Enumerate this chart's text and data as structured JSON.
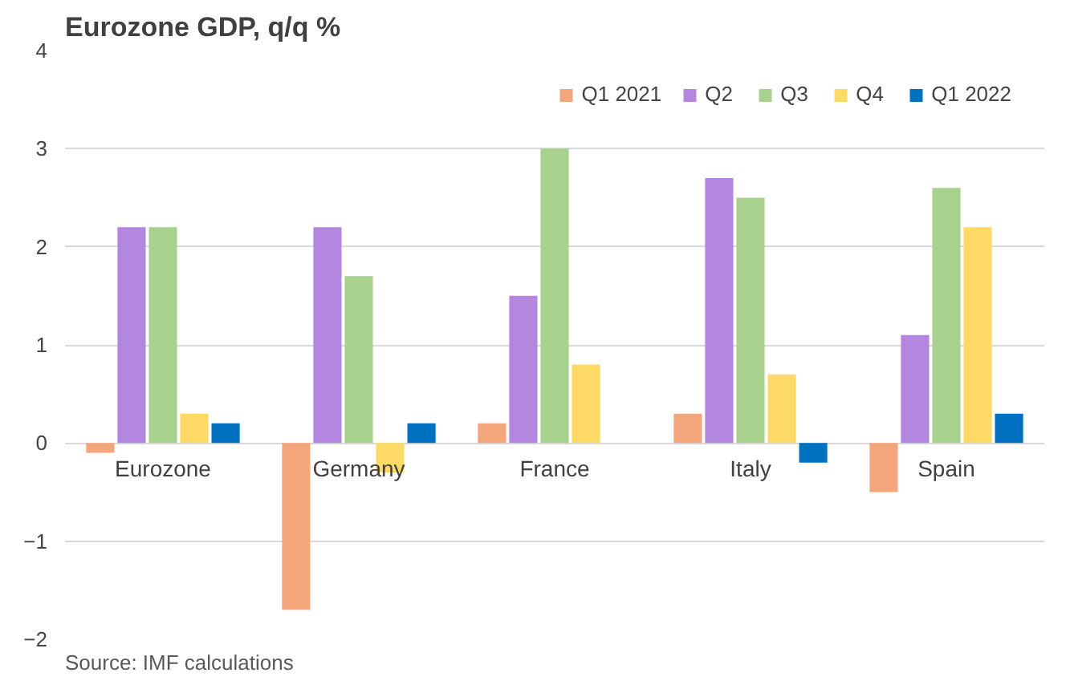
{
  "chart_data": {
    "type": "bar",
    "title": "Eurozone GDP, q/q %",
    "categories": [
      "Eurozone",
      "Germany",
      "France",
      "Italy",
      "Spain"
    ],
    "series": [
      {
        "name": "Q1 2021",
        "color": "#f4a57c",
        "values": [
          -0.1,
          -1.7,
          0.2,
          0.3,
          -0.5
        ]
      },
      {
        "name": "Q2",
        "color": "#b386e0",
        "values": [
          2.2,
          2.2,
          1.5,
          2.7,
          1.1
        ]
      },
      {
        "name": "Q3",
        "color": "#a9d18e",
        "values": [
          2.2,
          1.7,
          3.0,
          2.5,
          2.6
        ]
      },
      {
        "name": "Q4",
        "color": "#ffd966",
        "values": [
          0.3,
          -0.3,
          0.8,
          0.7,
          2.2
        ]
      },
      {
        "name": "Q1 2022",
        "color": "#0070c0",
        "values": [
          0.2,
          0.2,
          0.0,
          -0.2,
          0.3
        ]
      }
    ],
    "ylim": [
      -2,
      4
    ],
    "yticks": [
      -2,
      -1,
      0,
      1,
      2,
      3,
      4
    ],
    "grid": "y",
    "legend": "top right",
    "annotations": [
      "Source: IMF calculations"
    ]
  }
}
